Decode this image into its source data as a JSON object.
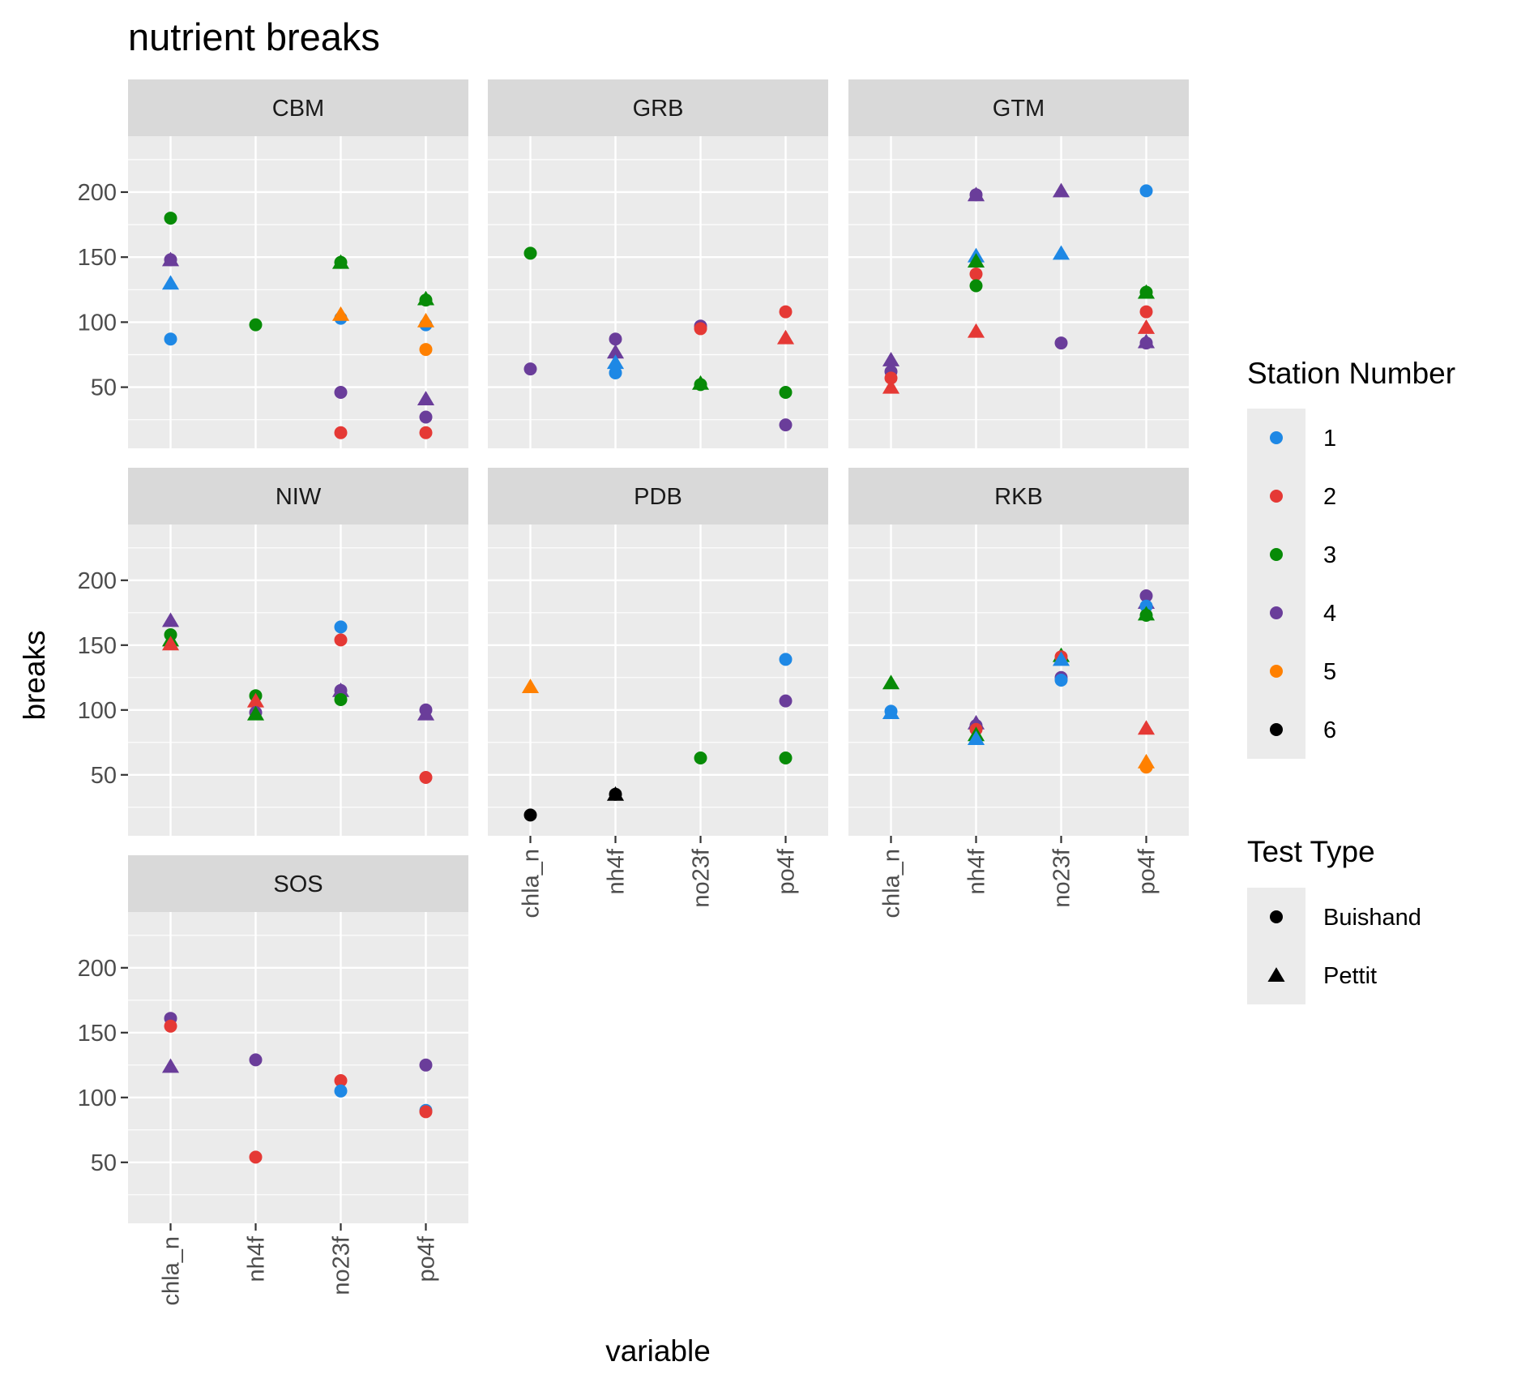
{
  "chart_data": {
    "type": "scatter",
    "title": "nutrient breaks",
    "xlabel": "variable",
    "ylabel": "breaks",
    "categories": [
      "chla_n",
      "nh4f",
      "no23f",
      "po4f"
    ],
    "y_ticks": [
      50,
      100,
      150,
      200
    ],
    "ylim": [
      3,
      243
    ],
    "grid": true,
    "facets": [
      "CBM",
      "GRB",
      "GTM",
      "NIW",
      "PDB",
      "RKB",
      "SOS"
    ],
    "colors": {
      "1": "#1e88e5",
      "2": "#e53935",
      "3": "#078b07",
      "4": "#6a3d9a",
      "5": "#ff8000",
      "6": "#000000"
    },
    "legend": {
      "position": "right",
      "station_title": "Station Number",
      "stations": [
        "1",
        "2",
        "3",
        "4",
        "5",
        "6"
      ],
      "test_title": "Test Type",
      "tests": [
        "Buishand",
        "Pettit"
      ]
    },
    "points": [
      {
        "facet": "CBM",
        "x": "chla_n",
        "y": 180,
        "station": "3",
        "test": "Buishand"
      },
      {
        "facet": "CBM",
        "x": "chla_n",
        "y": 148,
        "station": "4",
        "test": "Pettit"
      },
      {
        "facet": "CBM",
        "x": "chla_n",
        "y": 148,
        "station": "4",
        "test": "Buishand"
      },
      {
        "facet": "CBM",
        "x": "chla_n",
        "y": 130,
        "station": "1",
        "test": "Pettit"
      },
      {
        "facet": "CBM",
        "x": "chla_n",
        "y": 87,
        "station": "1",
        "test": "Buishand"
      },
      {
        "facet": "CBM",
        "x": "nh4f",
        "y": 98,
        "station": "3",
        "test": "Buishand"
      },
      {
        "facet": "CBM",
        "x": "no23f",
        "y": 146,
        "station": "3",
        "test": "Pettit"
      },
      {
        "facet": "CBM",
        "x": "no23f",
        "y": 146,
        "station": "3",
        "test": "Buishand"
      },
      {
        "facet": "CBM",
        "x": "no23f",
        "y": 103,
        "station": "1",
        "test": "Buishand"
      },
      {
        "facet": "CBM",
        "x": "no23f",
        "y": 106,
        "station": "5",
        "test": "Pettit"
      },
      {
        "facet": "CBM",
        "x": "no23f",
        "y": 46,
        "station": "4",
        "test": "Buishand"
      },
      {
        "facet": "CBM",
        "x": "no23f",
        "y": 15,
        "station": "2",
        "test": "Buishand"
      },
      {
        "facet": "CBM",
        "x": "po4f",
        "y": 118,
        "station": "3",
        "test": "Pettit"
      },
      {
        "facet": "CBM",
        "x": "po4f",
        "y": 117,
        "station": "3",
        "test": "Buishand"
      },
      {
        "facet": "CBM",
        "x": "po4f",
        "y": 98,
        "station": "1",
        "test": "Buishand"
      },
      {
        "facet": "CBM",
        "x": "po4f",
        "y": 101,
        "station": "5",
        "test": "Pettit"
      },
      {
        "facet": "CBM",
        "x": "po4f",
        "y": 79,
        "station": "5",
        "test": "Buishand"
      },
      {
        "facet": "CBM",
        "x": "po4f",
        "y": 41,
        "station": "4",
        "test": "Pettit"
      },
      {
        "facet": "CBM",
        "x": "po4f",
        "y": 27,
        "station": "4",
        "test": "Buishand"
      },
      {
        "facet": "CBM",
        "x": "po4f",
        "y": 15,
        "station": "2",
        "test": "Buishand"
      },
      {
        "facet": "GRB",
        "x": "chla_n",
        "y": 153,
        "station": "3",
        "test": "Buishand"
      },
      {
        "facet": "GRB",
        "x": "chla_n",
        "y": 64,
        "station": "4",
        "test": "Buishand"
      },
      {
        "facet": "GRB",
        "x": "nh4f",
        "y": 87,
        "station": "4",
        "test": "Buishand"
      },
      {
        "facet": "GRB",
        "x": "nh4f",
        "y": 77,
        "station": "4",
        "test": "Pettit"
      },
      {
        "facet": "GRB",
        "x": "nh4f",
        "y": 69,
        "station": "1",
        "test": "Pettit"
      },
      {
        "facet": "GRB",
        "x": "nh4f",
        "y": 61,
        "station": "1",
        "test": "Buishand"
      },
      {
        "facet": "GRB",
        "x": "no23f",
        "y": 97,
        "station": "4",
        "test": "Buishand"
      },
      {
        "facet": "GRB",
        "x": "no23f",
        "y": 95,
        "station": "2",
        "test": "Buishand"
      },
      {
        "facet": "GRB",
        "x": "no23f",
        "y": 53,
        "station": "3",
        "test": "Pettit"
      },
      {
        "facet": "GRB",
        "x": "no23f",
        "y": 52,
        "station": "3",
        "test": "Buishand"
      },
      {
        "facet": "GRB",
        "x": "po4f",
        "y": 108,
        "station": "2",
        "test": "Buishand"
      },
      {
        "facet": "GRB",
        "x": "po4f",
        "y": 88,
        "station": "2",
        "test": "Pettit"
      },
      {
        "facet": "GRB",
        "x": "po4f",
        "y": 46,
        "station": "3",
        "test": "Buishand"
      },
      {
        "facet": "GRB",
        "x": "po4f",
        "y": 21,
        "station": "4",
        "test": "Buishand"
      },
      {
        "facet": "GTM",
        "x": "chla_n",
        "y": 71,
        "station": "4",
        "test": "Pettit"
      },
      {
        "facet": "GTM",
        "x": "chla_n",
        "y": 62,
        "station": "4",
        "test": "Buishand"
      },
      {
        "facet": "GTM",
        "x": "chla_n",
        "y": 57,
        "station": "2",
        "test": "Buishand"
      },
      {
        "facet": "GTM",
        "x": "chla_n",
        "y": 50,
        "station": "2",
        "test": "Pettit"
      },
      {
        "facet": "GTM",
        "x": "nh4f",
        "y": 198,
        "station": "4",
        "test": "Pettit"
      },
      {
        "facet": "GTM",
        "x": "nh4f",
        "y": 198,
        "station": "4",
        "test": "Buishand"
      },
      {
        "facet": "GTM",
        "x": "nh4f",
        "y": 151,
        "station": "1",
        "test": "Pettit"
      },
      {
        "facet": "GTM",
        "x": "nh4f",
        "y": 147,
        "station": "3",
        "test": "Pettit"
      },
      {
        "facet": "GTM",
        "x": "nh4f",
        "y": 137,
        "station": "2",
        "test": "Buishand"
      },
      {
        "facet": "GTM",
        "x": "nh4f",
        "y": 128,
        "station": "3",
        "test": "Buishand"
      },
      {
        "facet": "GTM",
        "x": "nh4f",
        "y": 93,
        "station": "2",
        "test": "Pettit"
      },
      {
        "facet": "GTM",
        "x": "no23f",
        "y": 201,
        "station": "4",
        "test": "Pettit"
      },
      {
        "facet": "GTM",
        "x": "no23f",
        "y": 153,
        "station": "1",
        "test": "Pettit"
      },
      {
        "facet": "GTM",
        "x": "no23f",
        "y": 84,
        "station": "4",
        "test": "Buishand"
      },
      {
        "facet": "GTM",
        "x": "po4f",
        "y": 201,
        "station": "1",
        "test": "Buishand"
      },
      {
        "facet": "GTM",
        "x": "po4f",
        "y": 123,
        "station": "3",
        "test": "Pettit"
      },
      {
        "facet": "GTM",
        "x": "po4f",
        "y": 123,
        "station": "3",
        "test": "Buishand"
      },
      {
        "facet": "GTM",
        "x": "po4f",
        "y": 108,
        "station": "2",
        "test": "Buishand"
      },
      {
        "facet": "GTM",
        "x": "po4f",
        "y": 96,
        "station": "2",
        "test": "Pettit"
      },
      {
        "facet": "GTM",
        "x": "po4f",
        "y": 85,
        "station": "4",
        "test": "Pettit"
      },
      {
        "facet": "GTM",
        "x": "po4f",
        "y": 84,
        "station": "4",
        "test": "Buishand"
      },
      {
        "facet": "NIW",
        "x": "chla_n",
        "y": 169,
        "station": "4",
        "test": "Pettit"
      },
      {
        "facet": "NIW",
        "x": "chla_n",
        "y": 158,
        "station": "3",
        "test": "Buishand"
      },
      {
        "facet": "NIW",
        "x": "chla_n",
        "y": 154,
        "station": "3",
        "test": "Pettit"
      },
      {
        "facet": "NIW",
        "x": "chla_n",
        "y": 151,
        "station": "2",
        "test": "Pettit"
      },
      {
        "facet": "NIW",
        "x": "nh4f",
        "y": 111,
        "station": "3",
        "test": "Buishand"
      },
      {
        "facet": "NIW",
        "x": "nh4f",
        "y": 107,
        "station": "2",
        "test": "Pettit"
      },
      {
        "facet": "NIW",
        "x": "nh4f",
        "y": 98,
        "station": "4",
        "test": "Buishand"
      },
      {
        "facet": "NIW",
        "x": "nh4f",
        "y": 97,
        "station": "3",
        "test": "Pettit"
      },
      {
        "facet": "NIW",
        "x": "no23f",
        "y": 164,
        "station": "1",
        "test": "Buishand"
      },
      {
        "facet": "NIW",
        "x": "no23f",
        "y": 154,
        "station": "2",
        "test": "Buishand"
      },
      {
        "facet": "NIW",
        "x": "no23f",
        "y": 115,
        "station": "4",
        "test": "Pettit"
      },
      {
        "facet": "NIW",
        "x": "no23f",
        "y": 115,
        "station": "4",
        "test": "Buishand"
      },
      {
        "facet": "NIW",
        "x": "no23f",
        "y": 108,
        "station": "3",
        "test": "Buishand"
      },
      {
        "facet": "NIW",
        "x": "po4f",
        "y": 100,
        "station": "4",
        "test": "Buishand"
      },
      {
        "facet": "NIW",
        "x": "po4f",
        "y": 97,
        "station": "4",
        "test": "Pettit"
      },
      {
        "facet": "NIW",
        "x": "po4f",
        "y": 48,
        "station": "2",
        "test": "Buishand"
      },
      {
        "facet": "PDB",
        "x": "chla_n",
        "y": 118,
        "station": "5",
        "test": "Pettit"
      },
      {
        "facet": "PDB",
        "x": "chla_n",
        "y": 19,
        "station": "6",
        "test": "Buishand"
      },
      {
        "facet": "PDB",
        "x": "nh4f",
        "y": 35,
        "station": "6",
        "test": "Pettit"
      },
      {
        "facet": "PDB",
        "x": "nh4f",
        "y": 35,
        "station": "6",
        "test": "Buishand"
      },
      {
        "facet": "PDB",
        "x": "no23f",
        "y": 63,
        "station": "3",
        "test": "Buishand"
      },
      {
        "facet": "PDB",
        "x": "po4f",
        "y": 139,
        "station": "1",
        "test": "Buishand"
      },
      {
        "facet": "PDB",
        "x": "po4f",
        "y": 107,
        "station": "4",
        "test": "Buishand"
      },
      {
        "facet": "PDB",
        "x": "po4f",
        "y": 63,
        "station": "3",
        "test": "Buishand"
      },
      {
        "facet": "RKB",
        "x": "chla_n",
        "y": 121,
        "station": "3",
        "test": "Pettit"
      },
      {
        "facet": "RKB",
        "x": "chla_n",
        "y": 99,
        "station": "1",
        "test": "Buishand"
      },
      {
        "facet": "RKB",
        "x": "chla_n",
        "y": 98,
        "station": "1",
        "test": "Pettit"
      },
      {
        "facet": "RKB",
        "x": "nh4f",
        "y": 90,
        "station": "4",
        "test": "Pettit"
      },
      {
        "facet": "RKB",
        "x": "nh4f",
        "y": 88,
        "station": "4",
        "test": "Buishand"
      },
      {
        "facet": "RKB",
        "x": "nh4f",
        "y": 85,
        "station": "2",
        "test": "Buishand"
      },
      {
        "facet": "RKB",
        "x": "nh4f",
        "y": 81,
        "station": "3",
        "test": "Pettit"
      },
      {
        "facet": "RKB",
        "x": "nh4f",
        "y": 78,
        "station": "1",
        "test": "Pettit"
      },
      {
        "facet": "RKB",
        "x": "no23f",
        "y": 142,
        "station": "3",
        "test": "Pettit"
      },
      {
        "facet": "RKB",
        "x": "no23f",
        "y": 141,
        "station": "2",
        "test": "Buishand"
      },
      {
        "facet": "RKB",
        "x": "no23f",
        "y": 139,
        "station": "1",
        "test": "Pettit"
      },
      {
        "facet": "RKB",
        "x": "no23f",
        "y": 125,
        "station": "4",
        "test": "Buishand"
      },
      {
        "facet": "RKB",
        "x": "no23f",
        "y": 123,
        "station": "1",
        "test": "Buishand"
      },
      {
        "facet": "RKB",
        "x": "po4f",
        "y": 188,
        "station": "4",
        "test": "Buishand"
      },
      {
        "facet": "RKB",
        "x": "po4f",
        "y": 183,
        "station": "4",
        "test": "Pettit"
      },
      {
        "facet": "RKB",
        "x": "po4f",
        "y": 180,
        "station": "1",
        "test": "Buishand"
      },
      {
        "facet": "RKB",
        "x": "po4f",
        "y": 174,
        "station": "3",
        "test": "Pettit"
      },
      {
        "facet": "RKB",
        "x": "po4f",
        "y": 173,
        "station": "3",
        "test": "Buishand"
      },
      {
        "facet": "RKB",
        "x": "po4f",
        "y": 86,
        "station": "2",
        "test": "Pettit"
      },
      {
        "facet": "RKB",
        "x": "po4f",
        "y": 60,
        "station": "5",
        "test": "Pettit"
      },
      {
        "facet": "RKB",
        "x": "po4f",
        "y": 56,
        "station": "5",
        "test": "Buishand"
      },
      {
        "facet": "SOS",
        "x": "chla_n",
        "y": 161,
        "station": "4",
        "test": "Buishand"
      },
      {
        "facet": "SOS",
        "x": "chla_n",
        "y": 155,
        "station": "2",
        "test": "Buishand"
      },
      {
        "facet": "SOS",
        "x": "chla_n",
        "y": 124,
        "station": "4",
        "test": "Pettit"
      },
      {
        "facet": "SOS",
        "x": "nh4f",
        "y": 129,
        "station": "4",
        "test": "Buishand"
      },
      {
        "facet": "SOS",
        "x": "nh4f",
        "y": 54,
        "station": "2",
        "test": "Buishand"
      },
      {
        "facet": "SOS",
        "x": "no23f",
        "y": 113,
        "station": "2",
        "test": "Buishand"
      },
      {
        "facet": "SOS",
        "x": "no23f",
        "y": 105,
        "station": "1",
        "test": "Buishand"
      },
      {
        "facet": "SOS",
        "x": "po4f",
        "y": 125,
        "station": "4",
        "test": "Buishand"
      },
      {
        "facet": "SOS",
        "x": "po4f",
        "y": 90,
        "station": "1",
        "test": "Buishand"
      },
      {
        "facet": "SOS",
        "x": "po4f",
        "y": 89,
        "station": "2",
        "test": "Buishand"
      }
    ]
  }
}
